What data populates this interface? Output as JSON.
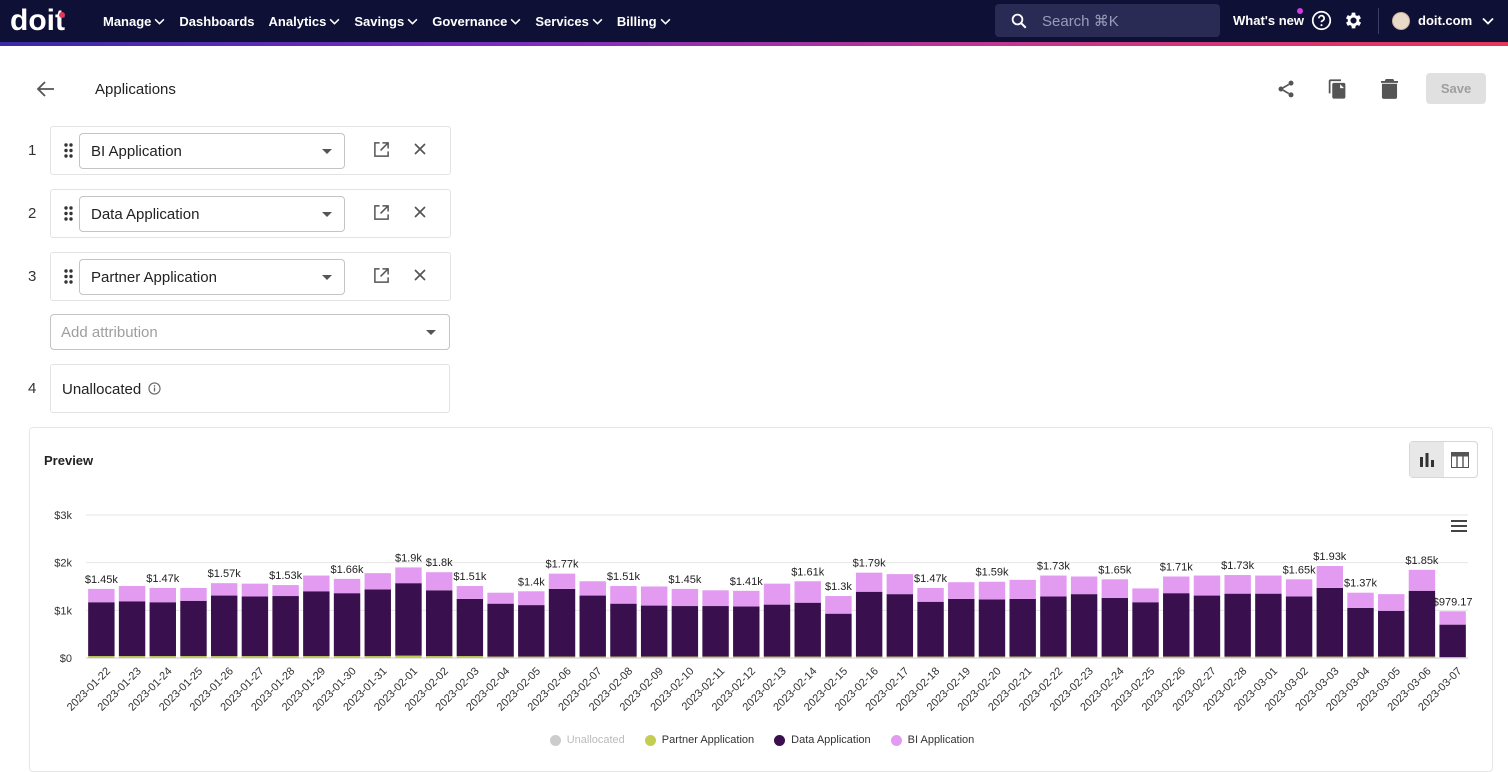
{
  "header": {
    "logo_text": "doit",
    "nav": [
      "Manage",
      "Dashboards",
      "Analytics",
      "Savings",
      "Governance",
      "Services",
      "Billing"
    ],
    "nav_has_caret": [
      true,
      false,
      true,
      true,
      true,
      true,
      true
    ],
    "search_placeholder": "Search ⌘K",
    "whats_new": "What's new",
    "account": "doit.com"
  },
  "page": {
    "title": "Applications",
    "save_label": "Save"
  },
  "attributions": [
    {
      "index": "1",
      "name": "BI Application"
    },
    {
      "index": "2",
      "name": "Data Application"
    },
    {
      "index": "3",
      "name": "Partner Application"
    }
  ],
  "add_attribution_placeholder": "Add attribution",
  "unallocated": {
    "index": "4",
    "label": "Unallocated"
  },
  "preview": {
    "title": "Preview",
    "colors": {
      "unallocated": "#cccccc",
      "partner": "#c3cd4f",
      "data": "#3a0f4d",
      "bi": "#e29bf0"
    }
  },
  "chart_data": {
    "type": "bar",
    "stacked": true,
    "y_ticks": [
      "$0",
      "$1k",
      "$2k",
      "$3k"
    ],
    "ylim": [
      0,
      3000
    ],
    "categories": [
      "2023-01-22",
      "2023-01-23",
      "2023-01-24",
      "2023-01-25",
      "2023-01-26",
      "2023-01-27",
      "2023-01-28",
      "2023-01-29",
      "2023-01-30",
      "2023-01-31",
      "2023-02-01",
      "2023-02-02",
      "2023-02-03",
      "2023-02-04",
      "2023-02-05",
      "2023-02-06",
      "2023-02-07",
      "2023-02-08",
      "2023-02-09",
      "2023-02-10",
      "2023-02-11",
      "2023-02-12",
      "2023-02-13",
      "2023-02-14",
      "2023-02-15",
      "2023-02-16",
      "2023-02-17",
      "2023-02-18",
      "2023-02-19",
      "2023-02-20",
      "2023-02-21",
      "2023-02-22",
      "2023-02-23",
      "2023-02-24",
      "2023-02-25",
      "2023-02-26",
      "2023-02-27",
      "2023-02-28",
      "2023-03-01",
      "2023-03-02",
      "2023-03-03",
      "2023-03-04",
      "2023-03-05",
      "2023-03-06",
      "2023-03-07"
    ],
    "series": [
      {
        "name": "Unallocated",
        "values": [
          0,
          0,
          0,
          0,
          0,
          0,
          0,
          0,
          0,
          0,
          0,
          0,
          0,
          0,
          0,
          0,
          0,
          0,
          0,
          0,
          0,
          0,
          0,
          0,
          0,
          0,
          0,
          0,
          0,
          0,
          0,
          0,
          0,
          0,
          0,
          0,
          0,
          0,
          0,
          0,
          0,
          0,
          0,
          0,
          0
        ]
      },
      {
        "name": "Partner Application",
        "values": [
          40,
          40,
          40,
          40,
          40,
          40,
          40,
          40,
          40,
          40,
          50,
          40,
          40,
          30,
          30,
          30,
          30,
          30,
          30,
          30,
          30,
          30,
          30,
          30,
          30,
          30,
          30,
          30,
          30,
          30,
          30,
          30,
          30,
          30,
          30,
          30,
          30,
          30,
          30,
          30,
          30,
          30,
          30,
          30,
          20
        ]
      },
      {
        "name": "Data Application",
        "values": [
          1130,
          1150,
          1130,
          1160,
          1270,
          1250,
          1260,
          1360,
          1320,
          1400,
          1520,
          1380,
          1200,
          1110,
          1080,
          1420,
          1280,
          1110,
          1070,
          1060,
          1060,
          1050,
          1090,
          1130,
          900,
          1360,
          1310,
          1150,
          1210,
          1200,
          1210,
          1260,
          1310,
          1230,
          1140,
          1330,
          1280,
          1320,
          1320,
          1260,
          1440,
          1020,
          960,
          1380,
          680
        ]
      },
      {
        "name": "BI Application",
        "values": [
          280,
          320,
          300,
          270,
          260,
          270,
          230,
          330,
          300,
          340,
          330,
          380,
          270,
          230,
          290,
          320,
          300,
          370,
          400,
          360,
          330,
          330,
          440,
          450,
          370,
          400,
          420,
          290,
          350,
          370,
          400,
          440,
          370,
          390,
          290,
          350,
          420,
          390,
          380,
          360,
          460,
          320,
          350,
          440,
          280
        ]
      }
    ],
    "data_labels": [
      "$1.45k",
      "",
      "$1.47k",
      "",
      "$1.57k",
      "",
      "$1.53k",
      "",
      "$1.66k",
      "",
      "$1.9k",
      "$1.8k",
      "$1.51k",
      "",
      "$1.4k",
      "$1.77k",
      "",
      "$1.51k",
      "",
      "$1.45k",
      "",
      "$1.41k",
      "",
      "$1.61k",
      "$1.3k",
      "$1.79k",
      "",
      "$1.47k",
      "",
      "$1.59k",
      "",
      "$1.73k",
      "",
      "$1.65k",
      "",
      "$1.71k",
      "",
      "$1.73k",
      "",
      "$1.65k",
      "$1.93k",
      "$1.37k",
      "",
      "$1.85k",
      "$979.17"
    ],
    "legend": [
      "Unallocated",
      "Partner Application",
      "Data Application",
      "BI Application"
    ],
    "legend_position": "bottom"
  }
}
